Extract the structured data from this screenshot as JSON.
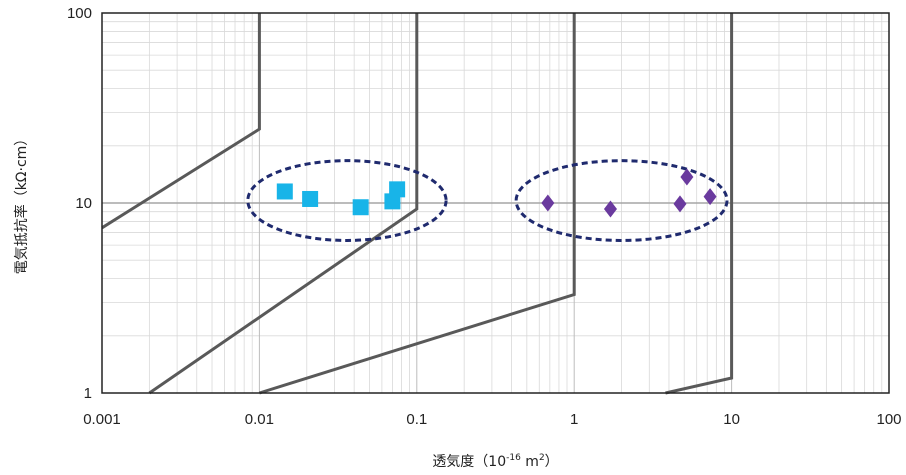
{
  "chart_data": {
    "type": "scatter",
    "title": "",
    "xlabel_main": "透気度（10",
    "xlabel_exp1": "-16",
    "xlabel_mid": " m",
    "xlabel_exp2": "2",
    "xlabel_end": "）",
    "ylabel": "電気抵抗率（kΩ·cm）",
    "x_scale": "log",
    "y_scale": "log",
    "xlim": [
      0.001,
      100
    ],
    "ylim": [
      1,
      100
    ],
    "x_ticks": [
      0.001,
      0.01,
      0.1,
      1,
      10,
      100
    ],
    "x_tick_labels": [
      "0.001",
      "0.01",
      "0.1",
      "1",
      "10",
      "100"
    ],
    "y_ticks": [
      1,
      10,
      100
    ],
    "y_tick_labels": [
      "1",
      "10",
      "100"
    ],
    "grid": true,
    "reference_line_y": 10,
    "boundary_lines": [
      {
        "points": [
          [
            0.001,
            7.4
          ],
          [
            0.01,
            24.5
          ],
          [
            0.01,
            100
          ]
        ]
      },
      {
        "points": [
          [
            0.002,
            1
          ],
          [
            0.1,
            9.3
          ],
          [
            0.1,
            100
          ]
        ]
      },
      {
        "points": [
          [
            0.01,
            1
          ],
          [
            1,
            3.3
          ],
          [
            1,
            100
          ]
        ]
      },
      {
        "points": [
          [
            3.8,
            1
          ],
          [
            10,
            1.2
          ],
          [
            10,
            100
          ]
        ]
      }
    ],
    "series": [
      {
        "marker": "square",
        "color": "#18b4e8",
        "points": [
          {
            "x": 0.0145,
            "y": 11.5
          },
          {
            "x": 0.021,
            "y": 10.5
          },
          {
            "x": 0.044,
            "y": 9.5
          },
          {
            "x": 0.07,
            "y": 10.2
          },
          {
            "x": 0.075,
            "y": 11.8
          }
        ]
      },
      {
        "marker": "diamond",
        "color": "#6a3a9e",
        "points": [
          {
            "x": 0.68,
            "y": 10.0
          },
          {
            "x": 1.7,
            "y": 9.3
          },
          {
            "x": 4.7,
            "y": 9.9
          },
          {
            "x": 5.2,
            "y": 13.7
          },
          {
            "x": 7.3,
            "y": 10.8
          }
        ]
      }
    ],
    "ellipses": [
      {
        "cx": 0.036,
        "cy": 10.3,
        "rx_decades": 0.63,
        "ry_decades": 0.21
      },
      {
        "cx": 2.0,
        "cy": 10.3,
        "rx_decades": 0.67,
        "ry_decades": 0.21
      }
    ],
    "colors": {
      "boundary": "#595959",
      "ellipse": "#1f2a6e",
      "grid_minor": "#d9d9d9",
      "grid_major": "#bdbdbd",
      "ref_line": "#a6a6a6",
      "frame": "#222222"
    }
  }
}
